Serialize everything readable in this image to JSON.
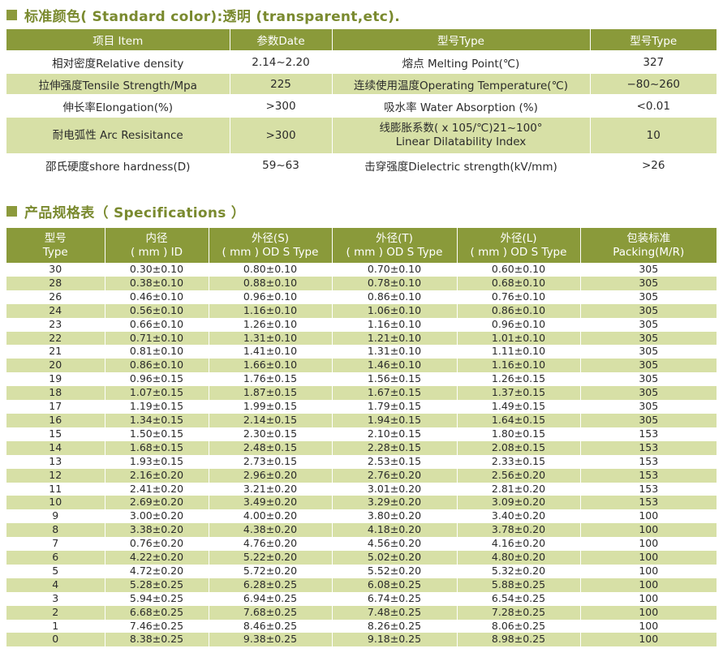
{
  "section1": {
    "title": "标准颜色( Standard color):透明 (transparent,etc)."
  },
  "props": {
    "headers": [
      "项目 Item",
      "参数Date",
      "型号Type",
      "型号Type"
    ],
    "rows": [
      [
        "相对密度Relative density",
        "2.14~2.20",
        "熔点 Melting Point(℃)",
        "327"
      ],
      [
        "拉伸强度Tensile Strength/Mpa",
        "225",
        "连续使用温度Operating Temperature(℃)",
        "−80~260"
      ],
      [
        "伸长率Elongation(%)",
        ">300",
        "吸水率 Water Absorption (%)",
        "<0.01"
      ],
      [
        "耐电弧性 Arc Resisitance",
        ">300",
        "线膨胀系数( x 105/℃)21~100°\nLinear Dilatability Index",
        "10"
      ],
      [
        "邵氏硬度shore hardness(D)",
        "59~63",
        "击穿强度Dielectric strength(kV/mm)",
        ">26"
      ]
    ]
  },
  "section2": {
    "title": "产品规格表（ Specifications ）"
  },
  "specs": {
    "headers": [
      [
        "型号",
        "Type"
      ],
      [
        "内径",
        "( mm ) ID"
      ],
      [
        "外径(S)",
        "( mm ) OD S Type"
      ],
      [
        "外径(T)",
        "( mm ) OD S Type"
      ],
      [
        "外径(L)",
        "( mm ) OD S Type"
      ],
      [
        "包装标准",
        "Packing(M/R)"
      ]
    ],
    "rows": [
      [
        "30",
        "0.30±0.10",
        "0.80±0.10",
        "0.70±0.10",
        "0.60±0.10",
        "305"
      ],
      [
        "28",
        "0.38±0.10",
        "0.88±0.10",
        "0.78±0.10",
        "0.68±0.10",
        "305"
      ],
      [
        "26",
        "0.46±0.10",
        "0.96±0.10",
        "0.86±0.10",
        "0.76±0.10",
        "305"
      ],
      [
        "24",
        "0.56±0.10",
        "1.16±0.10",
        "1.06±0.10",
        "0.86±0.10",
        "305"
      ],
      [
        "23",
        "0.66±0.10",
        "1.26±0.10",
        "1.16±0.10",
        "0.96±0.10",
        "305"
      ],
      [
        "22",
        "0.71±0.10",
        "1.31±0.10",
        "1.21±0.10",
        "1.01±0.10",
        "305"
      ],
      [
        "21",
        "0.81±0.10",
        "1.41±0.10",
        "1.31±0.10",
        "1.11±0.10",
        "305"
      ],
      [
        "20",
        "0.86±0.10",
        "1.66±0.10",
        "1.46±0.10",
        "1.16±0.10",
        "305"
      ],
      [
        "19",
        "0.96±0.15",
        "1.76±0.15",
        "1.56±0.15",
        "1.26±0.15",
        "305"
      ],
      [
        "18",
        "1.07±0.15",
        "1.87±0.15",
        "1.67±0.15",
        "1.37±0.15",
        "305"
      ],
      [
        "17",
        "1.19±0.15",
        "1.99±0.15",
        "1.79±0.15",
        "1.49±0.15",
        "305"
      ],
      [
        "16",
        "1.34±0.15",
        "2.14±0.15",
        "1.94±0.15",
        "1.64±0.15",
        "305"
      ],
      [
        "15",
        "1.50±0.15",
        "2.30±0.15",
        "2.10±0.15",
        "1.80±0.15",
        "153"
      ],
      [
        "14",
        "1.68±0.15",
        "2.48±0.15",
        "2.28±0.15",
        "2.08±0.15",
        "153"
      ],
      [
        "13",
        "1.93±0.15",
        "2.73±0.15",
        "2.53±0.15",
        "2.33±0.15",
        "153"
      ],
      [
        "12",
        "2.16±0.20",
        "2.96±0.20",
        "2.76±0.20",
        "2.56±0.20",
        "153"
      ],
      [
        "11",
        "2.41±0.20",
        "3.21±0.20",
        "3.01±0.20",
        "2.81±0.20",
        "153"
      ],
      [
        "10",
        "2.69±0.20",
        "3.49±0.20",
        "3.29±0.20",
        "3.09±0.20",
        "153"
      ],
      [
        "9",
        "3.00±0.20",
        "4.00±0.20",
        "3.80±0.20",
        "3.40±0.20",
        "100"
      ],
      [
        "8",
        "3.38±0.20",
        "4.38±0.20",
        "4.18±0.20",
        "3.78±0.20",
        "100"
      ],
      [
        "7",
        "0.76±0.20",
        "4.76±0.20",
        "4.56±0.20",
        "4.16±0.20",
        "100"
      ],
      [
        "6",
        "4.22±0.20",
        "5.22±0.20",
        "5.02±0.20",
        "4.80±0.20",
        "100"
      ],
      [
        "5",
        "4.72±0.20",
        "5.72±0.20",
        "5.52±0.20",
        "5.32±0.20",
        "100"
      ],
      [
        "4",
        "5.28±0.25",
        "6.28±0.25",
        "6.08±0.25",
        "5.88±0.25",
        "100"
      ],
      [
        "3",
        "5.94±0.25",
        "6.94±0.25",
        "6.74±0.25",
        "6.54±0.25",
        "100"
      ],
      [
        "2",
        "6.68±0.25",
        "7.68±0.25",
        "7.48±0.25",
        "7.28±0.25",
        "100"
      ],
      [
        "1",
        "7.46±0.25",
        "8.46±0.25",
        "8.26±0.25",
        "8.06±0.25",
        "100"
      ],
      [
        "0",
        "8.38±0.25",
        "9.38±0.25",
        "9.18±0.25",
        "8.98±0.25",
        "100"
      ]
    ]
  }
}
